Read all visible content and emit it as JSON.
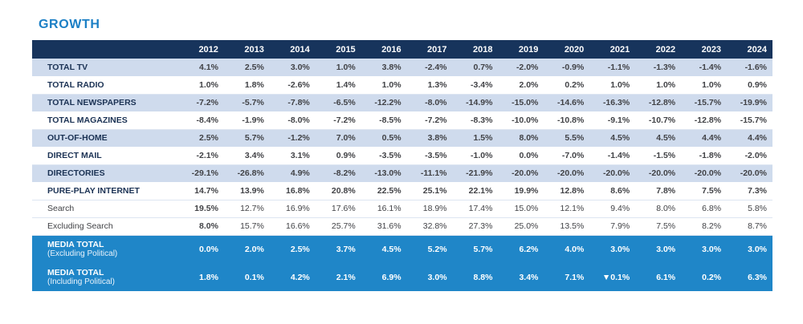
{
  "title": "GROWTH",
  "colors": {
    "header_bg": "#17345c",
    "alt_row_bg": "#cfdbed",
    "total_row_bg": "#1f86c8",
    "title_color": "#1b7fc5",
    "label_color": "#1b3254",
    "value_color": "#414246"
  },
  "chart_data": {
    "type": "table",
    "title": "GROWTH",
    "years": [
      "2012",
      "2013",
      "2014",
      "2015",
      "2016",
      "2017",
      "2018",
      "2019",
      "2020",
      "2021",
      "2022",
      "2023",
      "2024"
    ],
    "rows": [
      {
        "label": "TOTAL TV",
        "style": "alt",
        "values": [
          "4.1%",
          "2.5%",
          "3.0%",
          "1.0%",
          "3.8%",
          "-2.4%",
          "0.7%",
          "-2.0%",
          "-0.9%",
          "-1.1%",
          "-1.3%",
          "-1.4%",
          "-1.6%"
        ]
      },
      {
        "label": "TOTAL RADIO",
        "style": "plain",
        "values": [
          "1.0%",
          "1.8%",
          "-2.6%",
          "1.4%",
          "1.0%",
          "1.3%",
          "-3.4%",
          "2.0%",
          "0.2%",
          "1.0%",
          "1.0%",
          "1.0%",
          "0.9%"
        ]
      },
      {
        "label": "TOTAL NEWSPAPERS",
        "style": "alt",
        "values": [
          "-7.2%",
          "-5.7%",
          "-7.8%",
          "-6.5%",
          "-12.2%",
          "-8.0%",
          "-14.9%",
          "-15.0%",
          "-14.6%",
          "-16.3%",
          "-12.8%",
          "-15.7%",
          "-19.9%"
        ]
      },
      {
        "label": "TOTAL MAGAZINES",
        "style": "plain",
        "values": [
          "-8.4%",
          "-1.9%",
          "-8.0%",
          "-7.2%",
          "-8.5%",
          "-7.2%",
          "-8.3%",
          "-10.0%",
          "-10.8%",
          "-9.1%",
          "-10.7%",
          "-12.8%",
          "-15.7%"
        ]
      },
      {
        "label": "OUT-OF-HOME",
        "style": "alt",
        "values": [
          "2.5%",
          "5.7%",
          "-1.2%",
          "7.0%",
          "0.5%",
          "3.8%",
          "1.5%",
          "8.0%",
          "5.5%",
          "4.5%",
          "4.5%",
          "4.4%",
          "4.4%"
        ]
      },
      {
        "label": "DIRECT MAIL",
        "style": "plain",
        "values": [
          "-2.1%",
          "3.4%",
          "3.1%",
          "0.9%",
          "-3.5%",
          "-3.5%",
          "-1.0%",
          "0.0%",
          "-7.0%",
          "-1.4%",
          "-1.5%",
          "-1.8%",
          "-2.0%"
        ]
      },
      {
        "label": "DIRECTORIES",
        "style": "alt",
        "values": [
          "-29.1%",
          "-26.8%",
          "4.9%",
          "-8.2%",
          "-13.0%",
          "-11.1%",
          "-21.9%",
          "-20.0%",
          "-20.0%",
          "-20.0%",
          "-20.0%",
          "-20.0%",
          "-20.0%"
        ]
      },
      {
        "label": "PURE-PLAY INTERNET",
        "style": "plain",
        "values": [
          "14.7%",
          "13.9%",
          "16.8%",
          "20.8%",
          "22.5%",
          "25.1%",
          "22.1%",
          "19.9%",
          "12.8%",
          "8.6%",
          "7.8%",
          "7.5%",
          "7.3%"
        ]
      },
      {
        "label": "Search",
        "style": "sub",
        "values": [
          "19.5%",
          "12.7%",
          "16.9%",
          "17.6%",
          "16.1%",
          "18.9%",
          "17.4%",
          "15.0%",
          "12.1%",
          "9.4%",
          "8.0%",
          "6.8%",
          "5.8%"
        ]
      },
      {
        "label": "Excluding Search",
        "style": "sub",
        "values": [
          "8.0%",
          "15.7%",
          "16.6%",
          "25.7%",
          "31.6%",
          "32.8%",
          "27.3%",
          "25.0%",
          "13.5%",
          "7.9%",
          "7.5%",
          "8.2%",
          "8.7%"
        ]
      },
      {
        "label": "MEDIA TOTAL",
        "sublabel": "(Excluding Political)",
        "style": "total",
        "values": [
          "0.0%",
          "2.0%",
          "2.5%",
          "3.7%",
          "4.5%",
          "5.2%",
          "5.7%",
          "6.2%",
          "4.0%",
          "3.0%",
          "3.0%",
          "3.0%",
          "3.0%"
        ]
      },
      {
        "label": "MEDIA TOTAL",
        "sublabel": "(Including Political)",
        "style": "total",
        "values": [
          "1.8%",
          "0.1%",
          "4.2%",
          "2.1%",
          "6.9%",
          "3.0%",
          "8.8%",
          "3.4%",
          "7.1%",
          "▼0.1%",
          "6.1%",
          "0.2%",
          "6.3%"
        ]
      }
    ]
  }
}
